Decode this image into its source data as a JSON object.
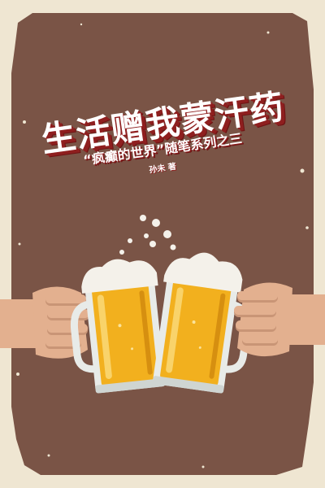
{
  "cover": {
    "title": "生活赠我蒙汗药",
    "subtitle": "“疯癫的世界”随笔系列之三",
    "author": "孙未 著"
  },
  "colors": {
    "background": "#7a5446",
    "border": "#efe6d2",
    "title_fill": "#ffffff",
    "title_shadow": "#8f1f1f",
    "beer": "#f2b01e",
    "foam": "#f4f1ea",
    "skin": "#e3b08f"
  }
}
